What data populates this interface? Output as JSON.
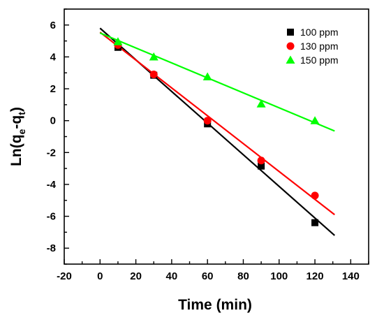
{
  "chart_data": {
    "type": "scatter",
    "xlabel": "Time (min)",
    "ylabel_main": "Ln(q",
    "ylabel_sub1": "e",
    "ylabel_mid": "-q",
    "ylabel_sub2": "t",
    "ylabel_end": ")",
    "xlim": [
      -20,
      150
    ],
    "ylim": [
      -9,
      7
    ],
    "x_ticks": [
      -20,
      0,
      20,
      40,
      60,
      80,
      100,
      120,
      140
    ],
    "y_ticks": [
      -8,
      -6,
      -4,
      -2,
      0,
      2,
      4,
      6
    ],
    "legend_position": "top-right",
    "series": [
      {
        "name": "100 ppm",
        "marker": "square",
        "color": "#000000",
        "x": [
          10,
          30,
          60,
          90,
          120
        ],
        "y": [
          4.6,
          2.85,
          -0.2,
          -2.85,
          -6.4
        ],
        "fit": {
          "x": [
            0,
            131
          ],
          "y": [
            5.8,
            -7.2
          ]
        }
      },
      {
        "name": "130 ppm",
        "marker": "circle",
        "color": "#ff0000",
        "x": [
          10,
          30,
          60,
          90,
          120
        ],
        "y": [
          4.75,
          2.9,
          0.0,
          -2.5,
          -4.7
        ],
        "fit": {
          "x": [
            0,
            131
          ],
          "y": [
            5.55,
            -5.9
          ]
        }
      },
      {
        "name": "150 ppm",
        "marker": "triangle",
        "color": "#00ff00",
        "x": [
          10,
          30,
          60,
          90,
          120
        ],
        "y": [
          4.95,
          4.0,
          2.75,
          1.05,
          0.0
        ],
        "fit": {
          "x": [
            0,
            131
          ],
          "y": [
            5.5,
            -0.65
          ]
        }
      }
    ]
  }
}
